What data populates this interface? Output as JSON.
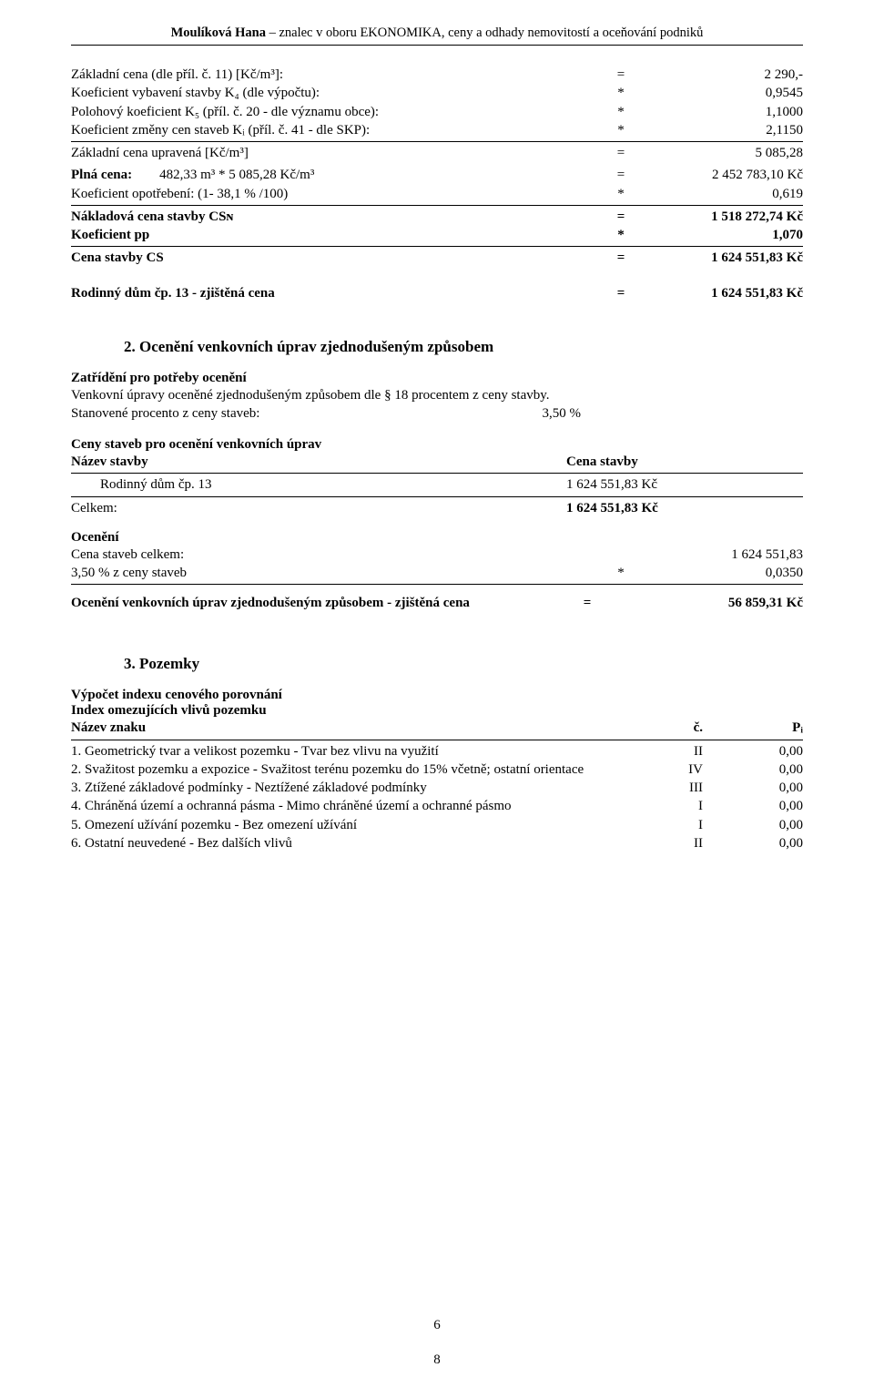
{
  "header": {
    "name": "Moulíková Hana",
    "sep": " – ",
    "desc": "znalec v oboru EKONOMIKA, ceny a odhady nemovitostí a oceňování podniků"
  },
  "calc": [
    {
      "label": "Základní cena (dle příl. č. 11) [Kč/m³]:",
      "op": "=",
      "val": "2 290,-"
    },
    {
      "label": "Koeficient vybavení stavby K₄ (dle výpočtu):",
      "op": "*",
      "val": "0,9545"
    },
    {
      "label": "Polohový koeficient K₅ (příl. č. 20 - dle významu obce):",
      "op": "*",
      "val": "1,1000"
    },
    {
      "label": "Koeficient změny cen staveb Kᵢ (příl. č. 41 - dle SKP):",
      "op": "*",
      "val": "2,1150"
    },
    {
      "label": "Základní cena upravená          [Kč/m³]",
      "op": "=",
      "val": "5 085,28"
    }
  ],
  "block2": [
    {
      "label": "Plná cena:        482,33 m³ * 5 085,28 Kč/m³",
      "bold_prefix": "Plná cena:",
      "op": "=",
      "val": "2 452 783,10 Kč"
    },
    {
      "label": "Koeficient opotřebení: (1- 38,1 % /100)",
      "op": "*",
      "val": "0,619"
    },
    {
      "label": "Nákladová cena stavby CSɴ",
      "op": "=",
      "val": "1 518 272,74 Kč",
      "bold": true
    },
    {
      "label": "Koeficient pp",
      "op": "*",
      "val": "1,070",
      "bold": true
    },
    {
      "label": "Cena stavby CS",
      "op": "=",
      "val": "1 624 551,83 Kč",
      "bold": true
    }
  ],
  "result1": {
    "label": "Rodinný dům čp. 13 - zjištěná cena",
    "op": "=",
    "val": "1 624 551,83 Kč"
  },
  "section2": {
    "title": "2. Ocenění venkovních úprav zjednodušeným způsobem",
    "sub1": "Zatřídění pro potřeby ocenění",
    "line1": "Venkovní úpravy oceněné zjednodušeným způsobem dle § 18 procentem z ceny stavby.",
    "line2_l": "Stanovené procento z ceny staveb:",
    "line2_v": "3,50 %",
    "sub2": "Ceny staveb pro ocenění venkovních úprav",
    "col_l": "Název stavby",
    "col_r": "Cena stavby",
    "row_l": "Rodinný dům čp. 13",
    "row_v": "1 624 551,83 Kč",
    "tot_l": "Celkem:",
    "tot_v": "1 624 551,83 Kč",
    "sub3": "Ocenění",
    "r1_l": "Cena staveb celkem:",
    "r1_v": "1 624 551,83",
    "r2_l": "3,50 % z ceny staveb",
    "r2_op": "*",
    "r2_v": "0,0350",
    "res_l": "Ocenění venkovních úprav zjednodušeným způsobem - zjištěná cena",
    "res_op": "=",
    "res_v": "56 859,31 Kč"
  },
  "section3": {
    "title": "3. Pozemky",
    "sub1": "Výpočet indexu cenového porovnání",
    "sub2": "Index omezujících vlivů pozemku",
    "hdr_l": "Název znaku",
    "hdr_c": "č.",
    "hdr_r": "Pᵢ",
    "rows": [
      {
        "l": "1. Geometrický tvar a velikost pozemku - Tvar bez vlivu na využití",
        "c": "II",
        "r": "0,00"
      },
      {
        "l": "2. Svažitost pozemku a expozice - Svažitost terénu pozemku do 15% včetně; ostatní orientace",
        "c": "IV",
        "r": "0,00"
      },
      {
        "l": "3. Ztížené základové podmínky - Neztížené základové podmínky",
        "c": "III",
        "r": "0,00"
      },
      {
        "l": "4. Chráněná území a ochranná pásma - Mimo chráněné území a ochranné pásmo",
        "c": "I",
        "r": "0,00"
      },
      {
        "l": "5. Omezení užívání pozemku - Bez omezení užívání",
        "c": "I",
        "r": "0,00"
      },
      {
        "l": "6. Ostatní neuvedené - Bez dalších vlivů",
        "c": "II",
        "r": "0,00"
      }
    ]
  },
  "pagenums": {
    "inner": "6",
    "outer": "8"
  }
}
